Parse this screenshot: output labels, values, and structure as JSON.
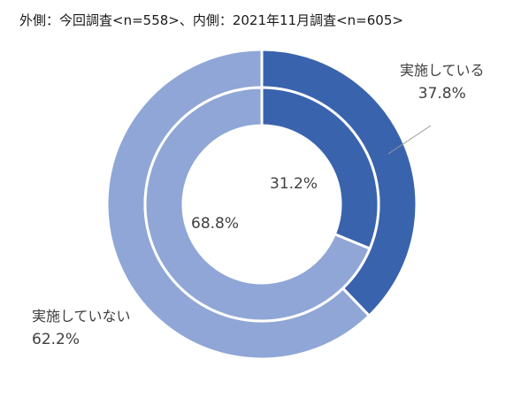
{
  "chart_data": {
    "type": "pie",
    "title": "外側：今回調査<n=558>、内側：2021年11月調査<n=605>",
    "categories": [
      "実施している",
      "実施していない"
    ],
    "series": [
      {
        "name": "今回調査<n=558>",
        "ring": "outer",
        "values": [
          37.8,
          62.2
        ],
        "labels": [
          "37.8%",
          "62.2%"
        ]
      },
      {
        "name": "2021年11月調査<n=605>",
        "ring": "inner",
        "values": [
          31.2,
          68.8
        ],
        "labels": [
          "31.2%",
          "68.8%"
        ]
      }
    ],
    "colors": {
      "実施している": "#3a63ad",
      "実施していない": "#8fa6d6"
    },
    "legend": "none"
  }
}
